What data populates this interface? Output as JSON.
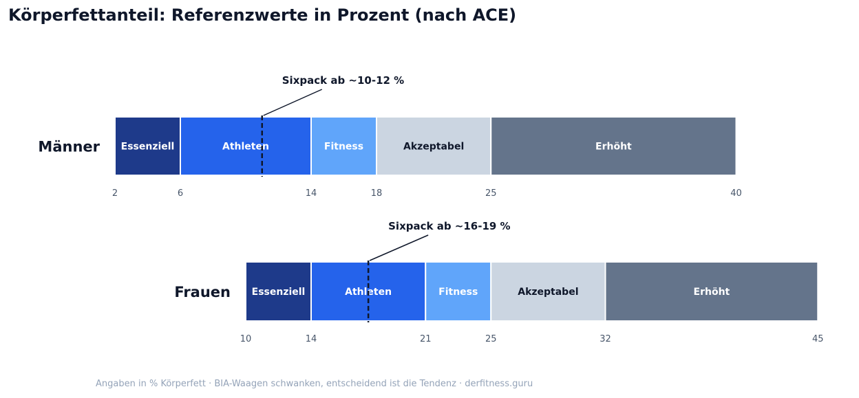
{
  "title": "Körperfettanteil: Referenzwerte in Prozent (nach ACE)",
  "footnote": "Angaben in % Körperfett · BIA-Waagen schwanken, entscheidend ist die Tendenz · derfitness.guru",
  "colors": {
    "essenziell": "#1e3a8a",
    "athleten": "#2563eb",
    "fitness": "#60a5fa",
    "akzeptabel": "#cbd5e1",
    "erhoeht": "#64748b",
    "text_dark": "#0f172a",
    "text_light": "#ffffff"
  },
  "chart_data": {
    "type": "bar",
    "orientation": "horizontal-stacked",
    "rows": [
      {
        "label": "Männer",
        "ticks": [
          2,
          6,
          14,
          18,
          25,
          40
        ],
        "segments": [
          {
            "label": "Essenziell",
            "from": 2,
            "to": 6,
            "color": "#1e3a8a",
            "text_color": "#ffffff"
          },
          {
            "label": "Athleten",
            "from": 6,
            "to": 14,
            "color": "#2563eb",
            "text_color": "#ffffff"
          },
          {
            "label": "Fitness",
            "from": 14,
            "to": 18,
            "color": "#60a5fa",
            "text_color": "#ffffff"
          },
          {
            "label": "Akzeptabel",
            "from": 18,
            "to": 25,
            "color": "#cbd5e1",
            "text_color": "#0f172a"
          },
          {
            "label": "Erhöht",
            "from": 25,
            "to": 40,
            "color": "#64748b",
            "text_color": "#ffffff"
          }
        ],
        "marker": {
          "value": 11,
          "label": "Sixpack ab ~10-12 %"
        }
      },
      {
        "label": "Frauen",
        "ticks": [
          10,
          14,
          21,
          25,
          32,
          45
        ],
        "segments": [
          {
            "label": "Essenziell",
            "from": 10,
            "to": 14,
            "color": "#1e3a8a",
            "text_color": "#ffffff"
          },
          {
            "label": "Athleten",
            "from": 14,
            "to": 21,
            "color": "#2563eb",
            "text_color": "#ffffff"
          },
          {
            "label": "Fitness",
            "from": 21,
            "to": 25,
            "color": "#60a5fa",
            "text_color": "#ffffff"
          },
          {
            "label": "Akzeptabel",
            "from": 25,
            "to": 32,
            "color": "#cbd5e1",
            "text_color": "#0f172a"
          },
          {
            "label": "Erhöht",
            "from": 32,
            "to": 45,
            "color": "#64748b",
            "text_color": "#ffffff"
          }
        ],
        "marker": {
          "value": 17.5,
          "label": "Sixpack ab ~16-19 %"
        }
      }
    ]
  }
}
